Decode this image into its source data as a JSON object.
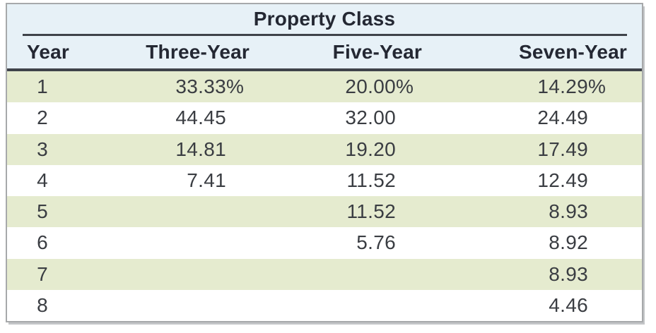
{
  "chart_data": {
    "type": "table",
    "title": "Property Class",
    "columns": [
      "Year",
      "Three-Year",
      "Five-Year",
      "Seven-Year"
    ],
    "rows": [
      {
        "year": "1",
        "three_year": "33.33%",
        "five_year": "20.00%",
        "seven_year": "14.29%"
      },
      {
        "year": "2",
        "three_year": "44.45",
        "five_year": "32.00",
        "seven_year": "24.49"
      },
      {
        "year": "3",
        "three_year": "14.81",
        "five_year": "19.20",
        "seven_year": "17.49"
      },
      {
        "year": "4",
        "three_year": "7.41",
        "five_year": "11.52",
        "seven_year": "12.49"
      },
      {
        "year": "5",
        "three_year": "",
        "five_year": "11.52",
        "seven_year": "8.93"
      },
      {
        "year": "6",
        "three_year": "",
        "five_year": "5.76",
        "seven_year": "8.92"
      },
      {
        "year": "7",
        "three_year": "",
        "five_year": "",
        "seven_year": "8.93"
      },
      {
        "year": "8",
        "three_year": "",
        "five_year": "",
        "seven_year": "4.46"
      }
    ]
  },
  "colors": {
    "header_bg": "#e7f1f7",
    "stripe_bg": "#e5ebcf",
    "rule_color": "#3f434a",
    "border_color": "#a7a9ab",
    "shadow_color": "#c3c5c7",
    "heading_text": "#242833",
    "data_text": "#3a3d42"
  }
}
